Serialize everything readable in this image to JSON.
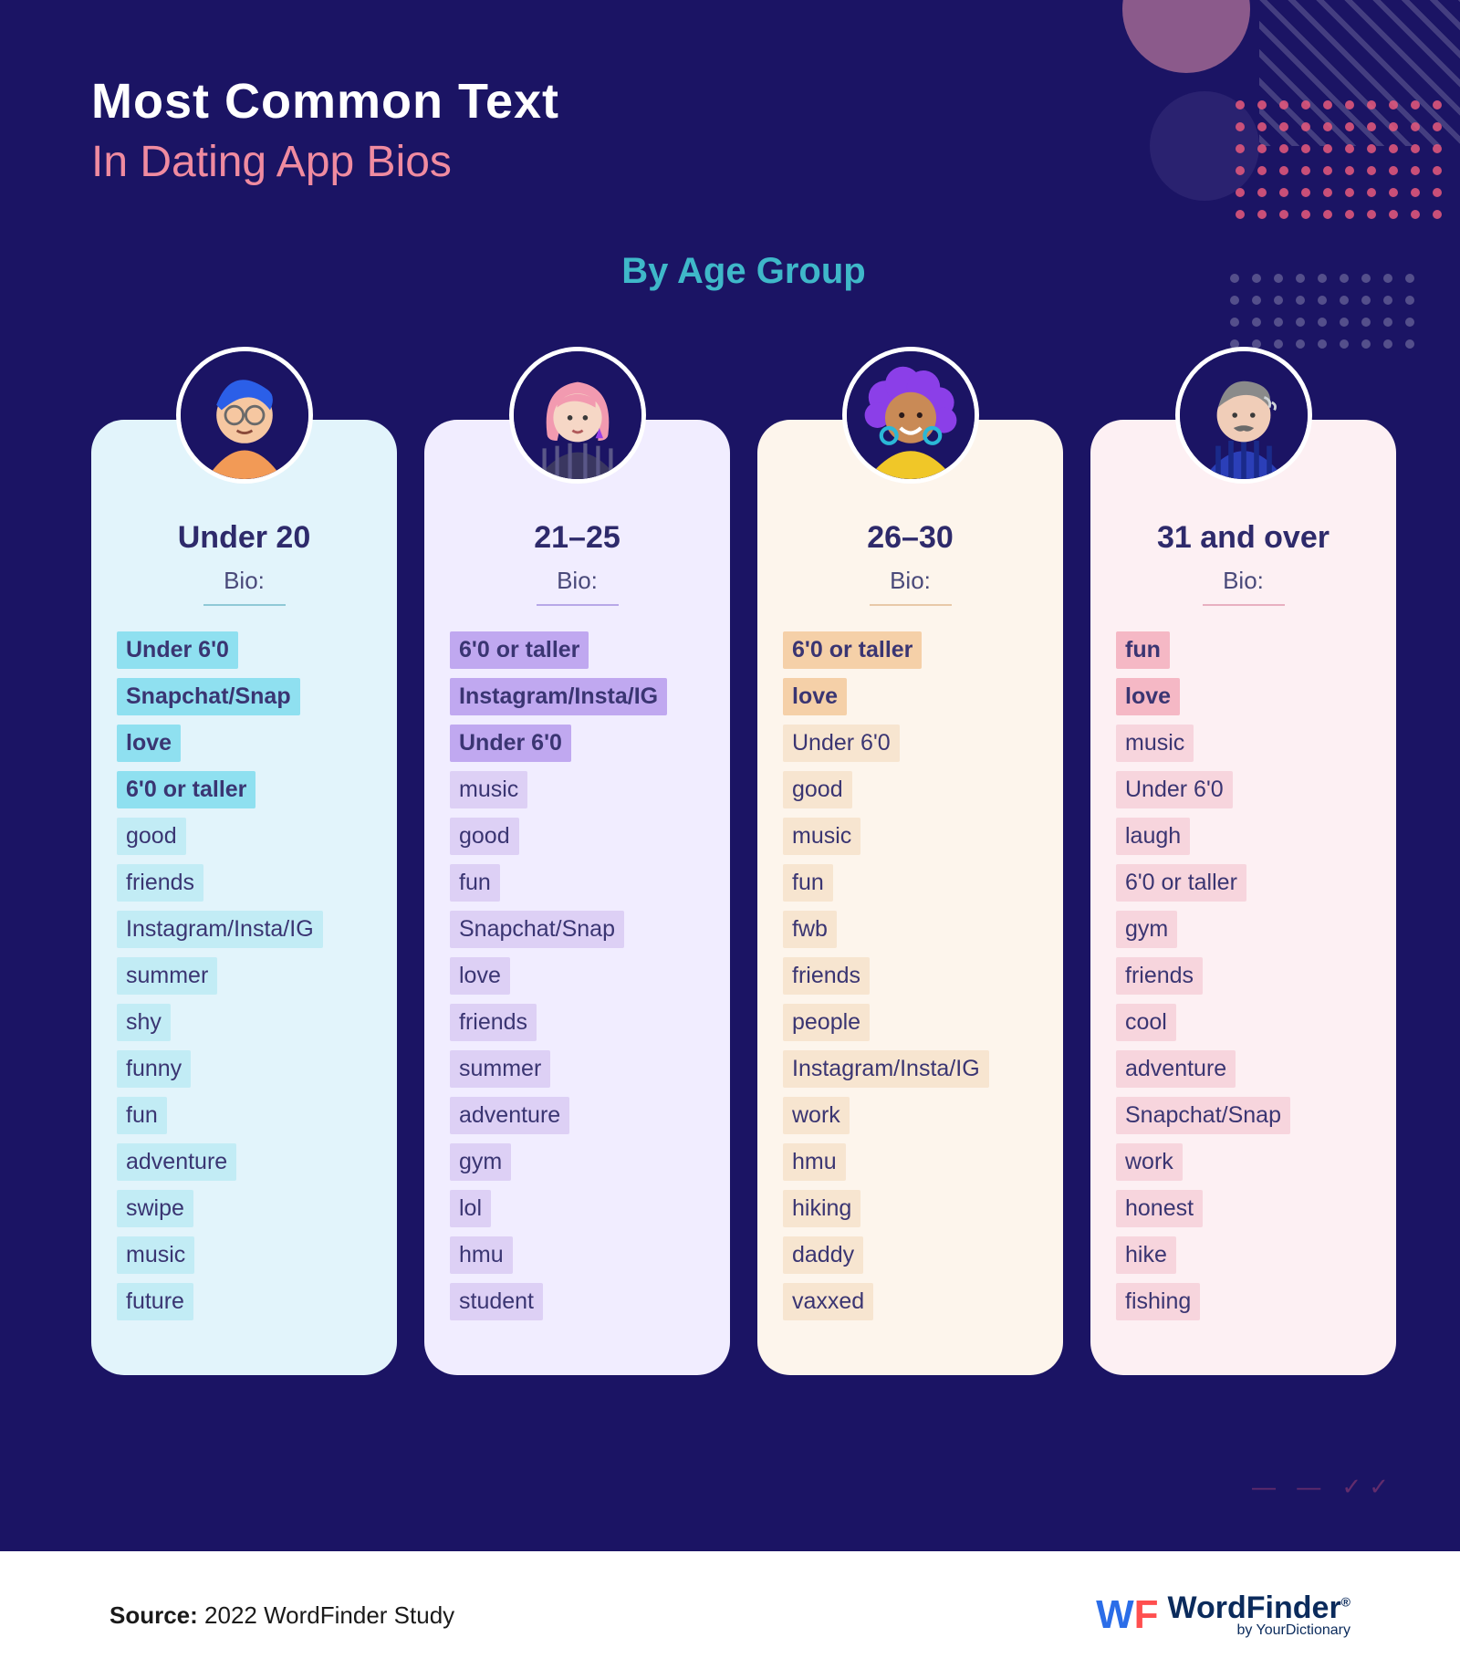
{
  "type": "infographic",
  "background_color": "#1b1464",
  "title": {
    "line1": "Most Common Text",
    "line2": "In Dating App Bios",
    "line1_color": "#ffffff",
    "line2_color": "#f08ba0",
    "line1_fontsize": 54,
    "line2_fontsize": 48
  },
  "subtitle": {
    "text": "By Age Group",
    "color": "#3fb8c9",
    "fontsize": 40
  },
  "columns": [
    {
      "heading": "Under 20",
      "sub": "Bio:",
      "card_bg": "#e2f4fb",
      "avatar_bg": "#1b1464",
      "accent_line": "#8fc9d6",
      "hl_color": "#8fe0f0",
      "hl2_color": "#c2ecf5",
      "avatar": {
        "hair": "#2b5fe8",
        "skin": "#f6c7a1",
        "glasses": "#6a6a6a",
        "shirt": "#f29a56"
      },
      "words": [
        {
          "t": "Under 6'0",
          "b": true,
          "w": 0.45
        },
        {
          "t": "Snapchat/Snap",
          "b": true,
          "w": 0.7
        },
        {
          "t": "love",
          "b": true,
          "w": 0.25
        },
        {
          "t": "6'0 or taller",
          "b": true,
          "w": 0.6
        },
        {
          "t": "good",
          "b": false,
          "w": 0.32
        },
        {
          "t": "friends",
          "b": false,
          "w": 0.4
        },
        {
          "t": "Instagram/Insta/IG",
          "b": false,
          "w": 0.78
        },
        {
          "t": "summer",
          "b": false,
          "w": 0.42
        },
        {
          "t": "shy",
          "b": false,
          "w": 0.22
        },
        {
          "t": "funny",
          "b": false,
          "w": 0.32
        },
        {
          "t": "fun",
          "b": false,
          "w": 0.22
        },
        {
          "t": "adventure",
          "b": false,
          "w": 0.5
        },
        {
          "t": "swipe",
          "b": false,
          "w": 0.32
        },
        {
          "t": "music",
          "b": false,
          "w": 0.34
        },
        {
          "t": "future",
          "b": false,
          "w": 0.34
        }
      ]
    },
    {
      "heading": "21–25",
      "sub": "Bio:",
      "card_bg": "#f1edff",
      "avatar_bg": "#1b1464",
      "accent_line": "#b8a8e8",
      "hl_color": "#c0a8f0",
      "hl2_color": "#ddd0f5",
      "avatar": {
        "hair": "#f29ab0",
        "skin": "#f6d7c6",
        "earring": "#9a3fe8",
        "shirt": "#3a3760"
      },
      "words": [
        {
          "t": "6'0 or taller",
          "b": true,
          "w": 0.55
        },
        {
          "t": "Instagram/Insta/IG",
          "b": true,
          "w": 0.85
        },
        {
          "t": "Under 6'0",
          "b": true,
          "w": 0.45
        },
        {
          "t": "music",
          "b": false,
          "w": 0.3
        },
        {
          "t": "good",
          "b": false,
          "w": 0.3
        },
        {
          "t": "fun",
          "b": false,
          "w": 0.2
        },
        {
          "t": "Snapchat/Snap",
          "b": false,
          "w": 0.6
        },
        {
          "t": "love",
          "b": false,
          "w": 0.25
        },
        {
          "t": "friends",
          "b": false,
          "w": 0.35
        },
        {
          "t": "summer",
          "b": false,
          "w": 0.4
        },
        {
          "t": "adventure",
          "b": false,
          "w": 0.48
        },
        {
          "t": "gym",
          "b": false,
          "w": 0.24
        },
        {
          "t": "lol",
          "b": false,
          "w": 0.18
        },
        {
          "t": "hmu",
          "b": false,
          "w": 0.24
        },
        {
          "t": "student",
          "b": false,
          "w": 0.38
        }
      ]
    },
    {
      "heading": "26–30",
      "sub": "Bio:",
      "card_bg": "#fdf5ec",
      "avatar_bg": "#1b1464",
      "accent_line": "#e8c9a8",
      "hl_color": "#f5d0a8",
      "hl2_color": "#f7e5d0",
      "avatar": {
        "hair": "#8b3fe8",
        "skin": "#c98a56",
        "earring": "#2bb8d6",
        "shirt": "#f0c728"
      },
      "words": [
        {
          "t": "6'0 or taller",
          "b": true,
          "w": 0.55
        },
        {
          "t": "love",
          "b": true,
          "w": 0.25
        },
        {
          "t": "Under 6'0",
          "b": false,
          "w": 0.45
        },
        {
          "t": "good",
          "b": false,
          "w": 0.3
        },
        {
          "t": "music",
          "b": false,
          "w": 0.32
        },
        {
          "t": "fun",
          "b": false,
          "w": 0.2
        },
        {
          "t": "fwb",
          "b": false,
          "w": 0.22
        },
        {
          "t": "friends",
          "b": false,
          "w": 0.35
        },
        {
          "t": "people",
          "b": false,
          "w": 0.35
        },
        {
          "t": "Instagram/Insta/IG",
          "b": false,
          "w": 0.78
        },
        {
          "t": "work",
          "b": false,
          "w": 0.28
        },
        {
          "t": "hmu",
          "b": false,
          "w": 0.24
        },
        {
          "t": "hiking",
          "b": false,
          "w": 0.32
        },
        {
          "t": "daddy",
          "b": false,
          "w": 0.32
        },
        {
          "t": "vaxxed",
          "b": false,
          "w": 0.36
        }
      ]
    },
    {
      "heading": "31 and over",
      "sub": "Bio:",
      "card_bg": "#fdf0f3",
      "avatar_bg": "#1b1464",
      "accent_line": "#e8b0c0",
      "hl_color": "#f5b8c5",
      "hl2_color": "#f7d5dd",
      "avatar": {
        "hair": "#8a8a8a",
        "skin": "#f0cdb8",
        "mustache": "#6a6a6a",
        "shirt": "#2b3fb8"
      },
      "words": [
        {
          "t": "fun",
          "b": true,
          "w": 0.22
        },
        {
          "t": "love",
          "b": true,
          "w": 0.26
        },
        {
          "t": "music",
          "b": false,
          "w": 0.32
        },
        {
          "t": "Under 6'0",
          "b": false,
          "w": 0.45
        },
        {
          "t": "laugh",
          "b": false,
          "w": 0.3
        },
        {
          "t": "6'0 or taller",
          "b": false,
          "w": 0.55
        },
        {
          "t": "gym",
          "b": false,
          "w": 0.24
        },
        {
          "t": "friends",
          "b": false,
          "w": 0.35
        },
        {
          "t": "cool",
          "b": false,
          "w": 0.25
        },
        {
          "t": "adventure",
          "b": false,
          "w": 0.48
        },
        {
          "t": "Snapchat/Snap",
          "b": false,
          "w": 0.6
        },
        {
          "t": "work",
          "b": false,
          "w": 0.28
        },
        {
          "t": "honest",
          "b": false,
          "w": 0.35
        },
        {
          "t": "hike",
          "b": false,
          "w": 0.25
        },
        {
          "t": "fishing",
          "b": false,
          "w": 0.35
        }
      ]
    }
  ],
  "footer": {
    "source_label": "Source:",
    "source_text": "2022 WordFinder Study",
    "logo_main": "WordFinder",
    "logo_sub": "by YourDictionary"
  }
}
